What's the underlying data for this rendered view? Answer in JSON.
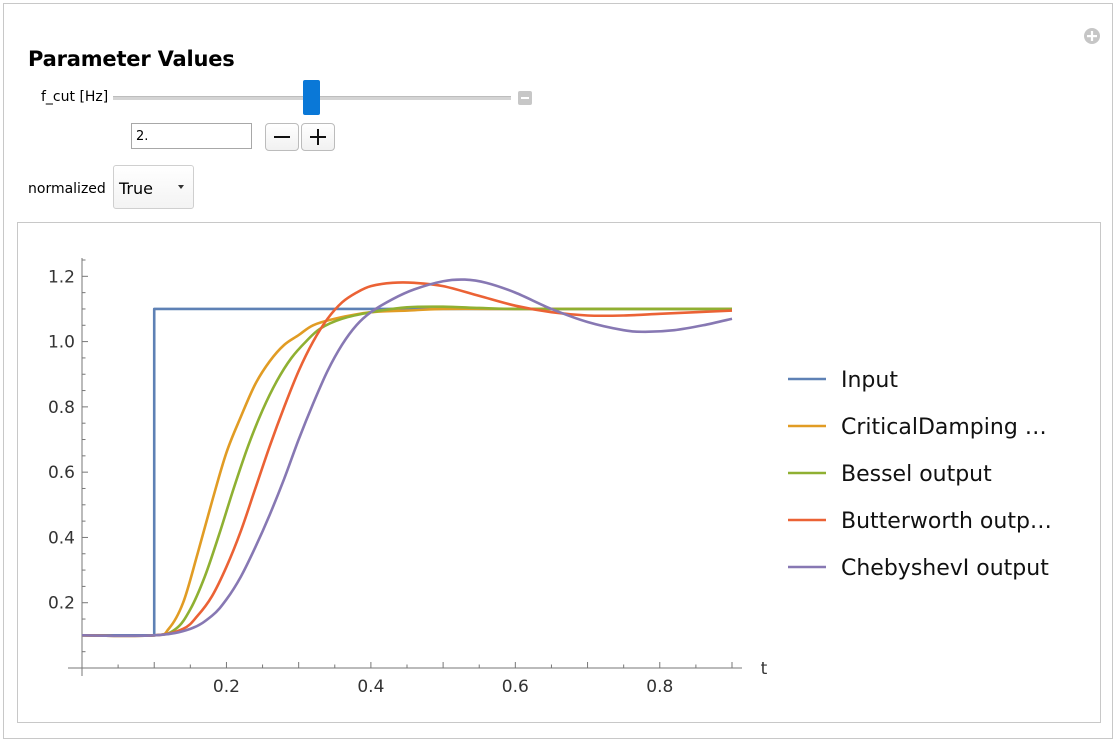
{
  "panel": {
    "section_title": "Parameter Values",
    "expand_icon": "plus-circle-icon"
  },
  "f_cut": {
    "label": "f_cut [Hz]",
    "value": "2.",
    "slider_fraction": 0.48,
    "collapse_icon": "minus-square-icon",
    "decrement_icon": "minus-icon",
    "increment_icon": "plus-icon"
  },
  "normalized": {
    "label": "normalized",
    "selected": "True",
    "arrow_icon": "caret-down-icon"
  },
  "chart_data": {
    "type": "line",
    "title": "",
    "xlabel": "t",
    "ylabel": "",
    "xlim": [
      0,
      0.9
    ],
    "ylim": [
      0,
      1.25
    ],
    "x_ticks": [
      "0.2",
      "0.4",
      "0.6",
      "0.8"
    ],
    "y_ticks": [
      "0.2",
      "0.4",
      "0.6",
      "0.8",
      "1.0",
      "1.2"
    ],
    "legend_position": "right",
    "series": [
      {
        "name": "Input",
        "color": "#5e81b5",
        "x": [
          0,
          0.1,
          0.1,
          0.9
        ],
        "y": [
          0.1,
          0.1,
          1.1,
          1.1
        ]
      },
      {
        "name": "CriticalDamping …",
        "color": "#e19c24",
        "x": [
          0,
          0.1,
          0.12,
          0.14,
          0.16,
          0.18,
          0.2,
          0.22,
          0.24,
          0.26,
          0.28,
          0.3,
          0.32,
          0.35,
          0.4,
          0.45,
          0.5,
          0.6,
          0.7,
          0.8,
          0.9
        ],
        "y": [
          0.1,
          0.1,
          0.12,
          0.2,
          0.35,
          0.51,
          0.66,
          0.77,
          0.87,
          0.94,
          0.99,
          1.02,
          1.05,
          1.07,
          1.09,
          1.095,
          1.1,
          1.1,
          1.1,
          1.1,
          1.1
        ]
      },
      {
        "name": "Bessel output",
        "color": "#8fb032",
        "x": [
          0,
          0.1,
          0.13,
          0.15,
          0.17,
          0.19,
          0.21,
          0.23,
          0.25,
          0.27,
          0.29,
          0.31,
          0.33,
          0.36,
          0.4,
          0.45,
          0.5,
          0.55,
          0.6,
          0.7,
          0.8,
          0.9
        ],
        "y": [
          0.1,
          0.1,
          0.12,
          0.18,
          0.28,
          0.41,
          0.55,
          0.68,
          0.79,
          0.88,
          0.95,
          1.0,
          1.04,
          1.07,
          1.09,
          1.105,
          1.107,
          1.103,
          1.1,
          1.1,
          1.1,
          1.1
        ]
      },
      {
        "name": "Butterworth outp…",
        "color": "#eb6235",
        "x": [
          0,
          0.1,
          0.14,
          0.16,
          0.18,
          0.2,
          0.22,
          0.24,
          0.26,
          0.28,
          0.3,
          0.32,
          0.34,
          0.36,
          0.38,
          0.4,
          0.43,
          0.46,
          0.5,
          0.55,
          0.6,
          0.65,
          0.7,
          0.75,
          0.8,
          0.85,
          0.9
        ],
        "y": [
          0.1,
          0.1,
          0.12,
          0.16,
          0.22,
          0.31,
          0.42,
          0.55,
          0.68,
          0.8,
          0.91,
          1.0,
          1.07,
          1.12,
          1.15,
          1.17,
          1.18,
          1.18,
          1.17,
          1.14,
          1.11,
          1.09,
          1.08,
          1.08,
          1.085,
          1.09,
          1.095
        ]
      },
      {
        "name": "ChebyshevI output",
        "color": "#8778b3",
        "x": [
          0,
          0.1,
          0.15,
          0.18,
          0.2,
          0.22,
          0.24,
          0.26,
          0.28,
          0.3,
          0.32,
          0.34,
          0.36,
          0.38,
          0.4,
          0.43,
          0.46,
          0.5,
          0.53,
          0.56,
          0.6,
          0.65,
          0.7,
          0.75,
          0.78,
          0.82,
          0.86,
          0.9
        ],
        "y": [
          0.1,
          0.1,
          0.12,
          0.16,
          0.21,
          0.28,
          0.37,
          0.47,
          0.58,
          0.7,
          0.81,
          0.91,
          0.99,
          1.05,
          1.09,
          1.13,
          1.16,
          1.185,
          1.19,
          1.18,
          1.15,
          1.1,
          1.06,
          1.035,
          1.03,
          1.035,
          1.05,
          1.07
        ]
      }
    ]
  }
}
